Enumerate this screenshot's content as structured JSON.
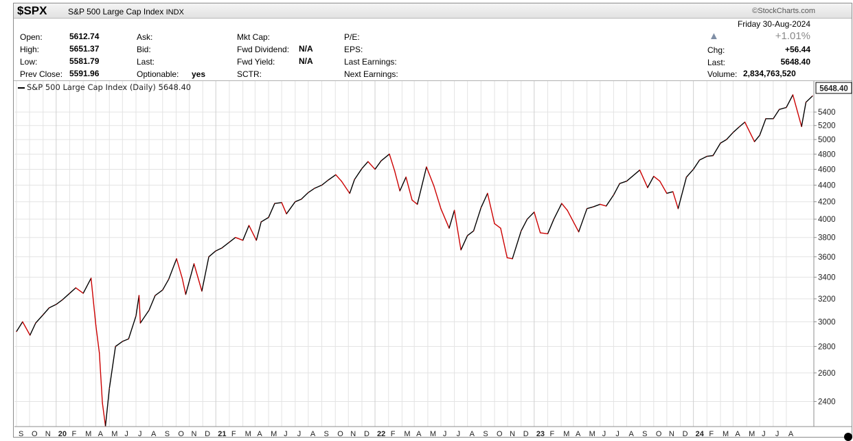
{
  "header": {
    "symbol": "$SPX",
    "name": "S&P 500 Large Cap Index",
    "exchange": "INDX",
    "credit": "©StockCharts.com",
    "date": "Friday  30-Aug-2024",
    "pct_change": "+1.01%",
    "up_arrow": "▲"
  },
  "stats": {
    "open_label": "Open:",
    "open": "5612.74",
    "high_label": "High:",
    "high": "5651.37",
    "low_label": "Low:",
    "low": "5581.79",
    "prev_label": "Prev Close:",
    "prev": "5591.96",
    "ask_label": "Ask:",
    "bid_label": "Bid:",
    "last_label1": "Last:",
    "optionable_label": "Optionable:",
    "optionable": "yes",
    "mktcap_label": "Mkt Cap:",
    "fwddiv_label": "Fwd Dividend:",
    "fwddiv": "N/A",
    "fwdyield_label": "Fwd Yield:",
    "fwdyield": "N/A",
    "sctr_label": "SCTR:",
    "pe_label": "P/E:",
    "eps_label": "EPS:",
    "lastearn_label": "Last Earnings:",
    "nextearn_label": "Next Earnings:",
    "chg_label": "Chg:",
    "chg": "+56.44",
    "last_label": "Last:",
    "last": "5648.40",
    "volume_label": "Volume:",
    "volume": "2,834,763,520"
  },
  "legend": "S&P 500 Large Cap Index (Daily) 5648.40",
  "colors": {
    "up": "#000000",
    "down": "#cc0000",
    "grid": "#e3e3e3",
    "arrow": "#7f8fa6"
  },
  "chart_data": {
    "type": "line",
    "title": "S&P 500 Large Cap Index (Daily) 5648.40",
    "last_value_label": "5648.40",
    "y_scale": "log",
    "ylim": [
      2250,
      5800
    ],
    "y_ticks": [
      2400,
      2600,
      2800,
      3000,
      3200,
      3400,
      3600,
      3800,
      4000,
      4200,
      4400,
      4600,
      4800,
      5000,
      5200,
      5400
    ],
    "x_ticks": [
      "S",
      "O",
      "N",
      "20",
      "F",
      "M",
      "A",
      "M",
      "J",
      "J",
      "A",
      "S",
      "O",
      "N",
      "D",
      "21",
      "F",
      "M",
      "A",
      "M",
      "J",
      "J",
      "A",
      "S",
      "O",
      "N",
      "D",
      "22",
      "F",
      "M",
      "A",
      "M",
      "J",
      "J",
      "A",
      "S",
      "O",
      "N",
      "D",
      "23",
      "F",
      "M",
      "A",
      "M",
      "J",
      "J",
      "A",
      "S",
      "O",
      "N",
      "D",
      "24",
      "F",
      "M",
      "A",
      "M",
      "J",
      "J",
      "A"
    ],
    "grid": true,
    "series": [
      {
        "name": "S&P 500 Large Cap Index (Daily)",
        "x": [
          "2019-09-01",
          "2019-09-15",
          "2019-10-02",
          "2019-10-15",
          "2019-11-01",
          "2019-11-15",
          "2019-12-01",
          "2019-12-15",
          "2020-01-01",
          "2020-01-15",
          "2020-02-01",
          "2020-02-19",
          "2020-03-01",
          "2020-03-09",
          "2020-03-16",
          "2020-03-23",
          "2020-04-01",
          "2020-04-15",
          "2020-05-01",
          "2020-05-15",
          "2020-06-01",
          "2020-06-08",
          "2020-06-11",
          "2020-07-01",
          "2020-07-15",
          "2020-08-01",
          "2020-08-15",
          "2020-09-02",
          "2020-09-15",
          "2020-09-23",
          "2020-10-12",
          "2020-10-30",
          "2020-11-15",
          "2020-12-01",
          "2020-12-15",
          "2021-01-01",
          "2021-01-15",
          "2021-02-01",
          "2021-02-15",
          "2021-03-04",
          "2021-03-15",
          "2021-04-01",
          "2021-04-15",
          "2021-05-01",
          "2021-05-12",
          "2021-06-01",
          "2021-06-15",
          "2021-07-01",
          "2021-07-15",
          "2021-08-01",
          "2021-08-15",
          "2021-09-02",
          "2021-09-15",
          "2021-10-04",
          "2021-10-15",
          "2021-11-01",
          "2021-11-15",
          "2021-12-01",
          "2021-12-15",
          "2022-01-03",
          "2022-01-15",
          "2022-01-27",
          "2022-02-10",
          "2022-02-24",
          "2022-03-08",
          "2022-03-29",
          "2022-04-15",
          "2022-05-01",
          "2022-05-20",
          "2022-06-01",
          "2022-06-16",
          "2022-07-01",
          "2022-07-15",
          "2022-08-01",
          "2022-08-16",
          "2022-09-01",
          "2022-09-15",
          "2022-09-30",
          "2022-10-12",
          "2022-11-01",
          "2022-11-15",
          "2022-12-01",
          "2022-12-15",
          "2023-01-01",
          "2023-01-15",
          "2023-02-02",
          "2023-02-15",
          "2023-03-13",
          "2023-04-01",
          "2023-04-15",
          "2023-05-01",
          "2023-05-15",
          "2023-06-01",
          "2023-06-15",
          "2023-07-01",
          "2023-07-31",
          "2023-08-18",
          "2023-09-01",
          "2023-09-15",
          "2023-10-01",
          "2023-10-15",
          "2023-10-27",
          "2023-11-15",
          "2023-12-01",
          "2023-12-15",
          "2024-01-01",
          "2024-01-15",
          "2024-02-01",
          "2024-02-15",
          "2024-03-01",
          "2024-03-15",
          "2024-03-28",
          "2024-04-19",
          "2024-05-01",
          "2024-05-15",
          "2024-06-01",
          "2024-06-15",
          "2024-07-01",
          "2024-07-16",
          "2024-08-05",
          "2024-08-15",
          "2024-08-30"
        ],
        "values": [
          2920,
          3000,
          2890,
          2990,
          3060,
          3120,
          3150,
          3190,
          3250,
          3300,
          3250,
          3390,
          2970,
          2750,
          2390,
          2240,
          2490,
          2800,
          2840,
          2860,
          3050,
          3230,
          2990,
          3100,
          3230,
          3280,
          3380,
          3580,
          3390,
          3240,
          3530,
          3270,
          3600,
          3660,
          3690,
          3750,
          3800,
          3770,
          3930,
          3770,
          3970,
          4020,
          4180,
          4190,
          4060,
          4200,
          4230,
          4310,
          4360,
          4400,
          4460,
          4530,
          4450,
          4300,
          4470,
          4610,
          4700,
          4600,
          4710,
          4800,
          4580,
          4330,
          4500,
          4220,
          4170,
          4630,
          4390,
          4120,
          3900,
          4100,
          3670,
          3820,
          3870,
          4130,
          4300,
          3950,
          3900,
          3590,
          3580,
          3870,
          4000,
          4080,
          3850,
          3840,
          4000,
          4180,
          4100,
          3860,
          4120,
          4140,
          4170,
          4150,
          4280,
          4420,
          4450,
          4590,
          4370,
          4510,
          4450,
          4300,
          4320,
          4120,
          4500,
          4600,
          4720,
          4770,
          4780,
          4950,
          5000,
          5100,
          5180,
          5250,
          4970,
          5060,
          5300,
          5300,
          5440,
          5470,
          5667,
          5186,
          5550,
          5648
        ]
      }
    ]
  }
}
